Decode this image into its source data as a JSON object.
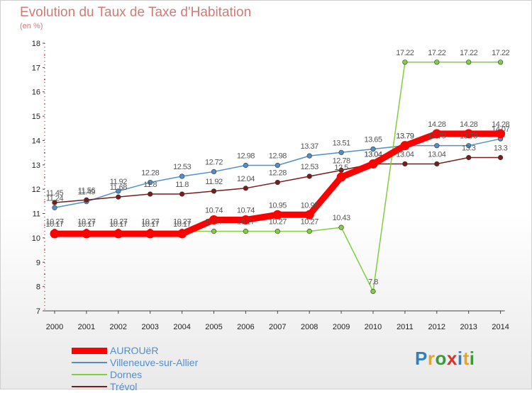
{
  "header": {
    "title": "Evolution du Taux de Taxe d'Habitation",
    "unit": "(en %)"
  },
  "logo": {
    "text": "Proxiti",
    "letter_colors": [
      "#2f7fc1",
      "#e8a323",
      "#3a9a3a",
      "#d8332a",
      "#2f7fc1",
      "#e8a323",
      "#3a9a3a"
    ]
  },
  "chart_data": {
    "type": "line",
    "title": "Evolution du Taux de Taxe d'Habitation",
    "ylabel": "(en %)",
    "xlabel": "",
    "x": [
      "2000",
      "2001",
      "2002",
      "2003",
      "2004",
      "2005",
      "2006",
      "2007",
      "2008",
      "2009",
      "2010",
      "2011",
      "2012",
      "2013",
      "2014"
    ],
    "ylim": [
      7,
      18
    ],
    "yticks": [
      7,
      8,
      9,
      10,
      11,
      12,
      13,
      14,
      15,
      16,
      17,
      18
    ],
    "grid": false,
    "legend_position": "bottom-left",
    "series": [
      {
        "name": "AUROUëR",
        "color": "#ff0000",
        "values": [
          10.17,
          10.17,
          10.17,
          10.17,
          10.17,
          10.74,
          10.74,
          10.95,
          10.95,
          12.5,
          13.04,
          13.79,
          14.28,
          14.28,
          14.28
        ],
        "labels": [
          "10.17",
          "10.17",
          "10.17",
          "10.17",
          "10.17",
          "10.74",
          "10.74",
          "10.95",
          "10.95",
          "12.5",
          "13.04",
          "13.79",
          "14.28",
          "14.28",
          "14.28"
        ]
      },
      {
        "name": "Villeneuve-sur-Allier",
        "color": "#4f8fce",
        "values": [
          11.24,
          11.49,
          11.92,
          12.28,
          12.53,
          12.72,
          12.98,
          12.98,
          13.37,
          13.51,
          13.65,
          13.79,
          13.79,
          13.79,
          14.07
        ],
        "labels": [
          "11.24",
          "11.49",
          "11.92",
          "12.28",
          "12.53",
          "12.72",
          "12.98",
          "12.98",
          "13.37",
          "13.51",
          "13.65",
          "13.79",
          "13.79",
          "13.79",
          "14.07"
        ]
      },
      {
        "name": "Dornes",
        "color": "#7fcf3f",
        "values": [
          10.27,
          10.27,
          10.27,
          10.27,
          10.27,
          10.27,
          10.27,
          10.27,
          10.27,
          10.43,
          7.8,
          17.22,
          17.22,
          17.22,
          17.22
        ],
        "labels": [
          "10.27",
          "10.27",
          "10.27",
          "10.27",
          "10.27",
          "10.27",
          "10.27",
          "10.27",
          "10.27",
          "10.43",
          "7.8",
          "17.22",
          "17.22",
          "17.22",
          "17.22"
        ]
      },
      {
        "name": "Trévol",
        "color": "#7a1c1c",
        "values": [
          11.45,
          11.56,
          11.68,
          11.8,
          11.8,
          11.92,
          12.04,
          12.28,
          12.53,
          12.78,
          13.04,
          13.04,
          13.04,
          13.3,
          13.3
        ],
        "labels": [
          "11.45",
          "11.56",
          "11.68",
          "11.8",
          "11.8",
          "11.92",
          "12.04",
          "12.28",
          "12.53",
          "12.78",
          "13.04",
          "13.04",
          "13.04",
          "13.3",
          "13.3"
        ]
      }
    ]
  }
}
